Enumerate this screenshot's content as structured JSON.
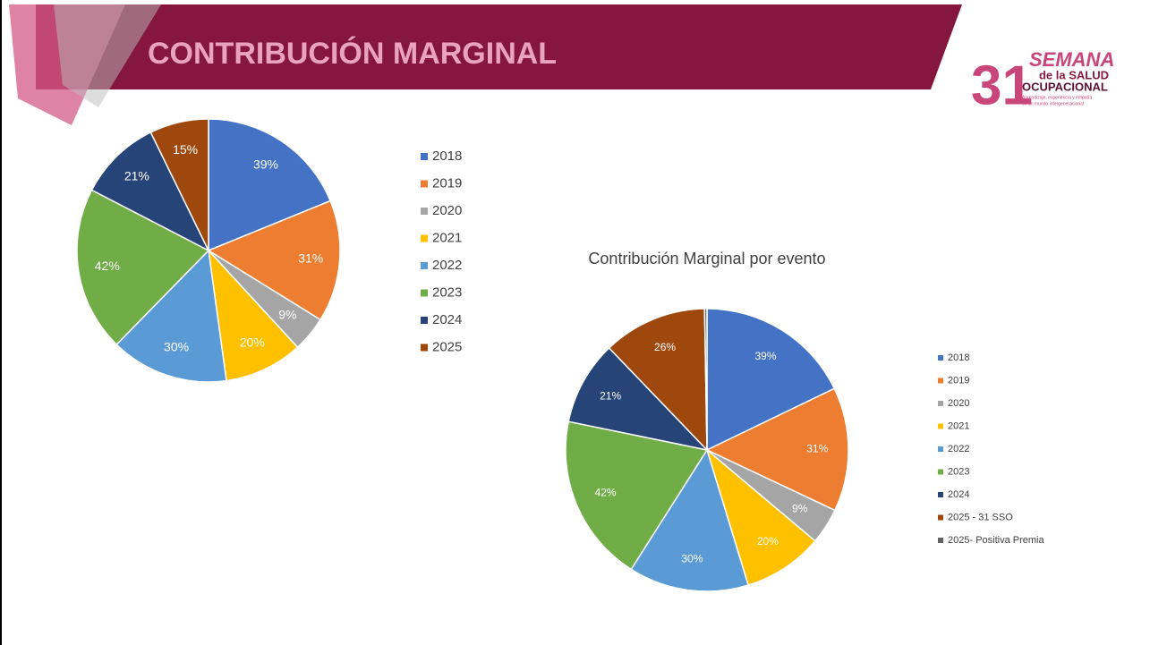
{
  "header": {
    "title": "CONTRIBUCIÓN MARGINAL",
    "logo": {
      "number": "31",
      "word1": "SEMANA",
      "word2": "de la SALUD",
      "word3": "OCUPACIONAL",
      "tagline1": "Aprendizaje, experiencia y empatía",
      "tagline2": "en un mundo intergeneracional"
    }
  },
  "chart_data": [
    {
      "type": "pie",
      "categories": [
        "2018",
        "2019",
        "2020",
        "2021",
        "2022",
        "2023",
        "2024",
        "2025"
      ],
      "values": [
        39,
        31,
        9,
        20,
        30,
        42,
        21,
        15
      ],
      "value_labels": [
        "39%",
        "31%",
        "9%",
        "20%",
        "30%",
        "42%",
        "21%",
        "15%"
      ],
      "colors": [
        "#4472c4",
        "#ed7d31",
        "#a5a5a5",
        "#ffc000",
        "#5b9bd5",
        "#70ad47",
        "#264478",
        "#9e480e"
      ],
      "legend": "right"
    },
    {
      "type": "pie",
      "title": "Contribución Marginal por evento",
      "categories": [
        "2018",
        "2019",
        "2020",
        "2021",
        "2022",
        "2023",
        "2024",
        "2025 - 31 SSO",
        "2025- Positiva Premia"
      ],
      "values": [
        39,
        31,
        9,
        20,
        30,
        42,
        21,
        26,
        0.6
      ],
      "value_labels": [
        "39%",
        "31%",
        "9%",
        "20%",
        "30%",
        "42%",
        "21%",
        "26%",
        null
      ],
      "colors": [
        "#4472c4",
        "#ed7d31",
        "#a5a5a5",
        "#ffc000",
        "#5b9bd5",
        "#70ad47",
        "#264478",
        "#9e480e",
        "#636363"
      ],
      "legend": "right"
    }
  ]
}
